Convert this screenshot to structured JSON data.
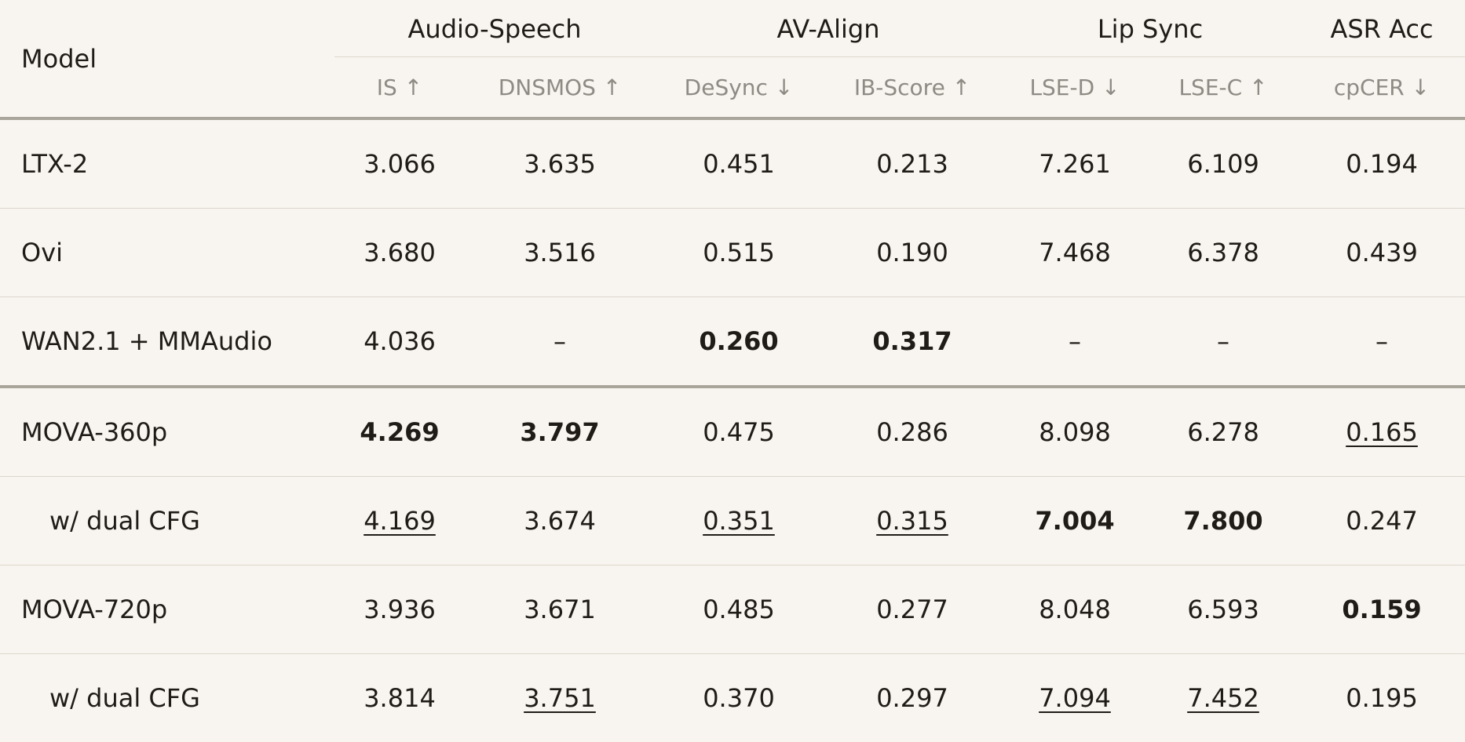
{
  "header": {
    "model_label": "Model",
    "groups": [
      {
        "label": "Audio-Speech",
        "metrics": [
          {
            "name": "IS",
            "arrow": "↑"
          },
          {
            "name": "DNSMOS",
            "arrow": "↑"
          }
        ]
      },
      {
        "label": "AV-Align",
        "metrics": [
          {
            "name": "DeSync",
            "arrow": "↓"
          },
          {
            "name": "IB-Score",
            "arrow": "↑"
          }
        ]
      },
      {
        "label": "Lip Sync",
        "metrics": [
          {
            "name": "LSE-D",
            "arrow": "↓"
          },
          {
            "name": "LSE-C",
            "arrow": "↑"
          }
        ]
      },
      {
        "label": "ASR Acc",
        "metrics": [
          {
            "name": "cpCER",
            "arrow": "↓"
          }
        ]
      }
    ]
  },
  "rows": [
    {
      "model": "LTX-2",
      "is": "3.066",
      "dnsmos": "3.635",
      "desync": "0.451",
      "ib_score": "0.213",
      "lse_d": "7.261",
      "lse_c": "6.109",
      "cpcer": "0.194"
    },
    {
      "model": "Ovi",
      "is": "3.680",
      "dnsmos": "3.516",
      "desync": "0.515",
      "ib_score": "0.190",
      "lse_d": "7.468",
      "lse_c": "6.378",
      "cpcer": "0.439"
    },
    {
      "model": "WAN2.1 + MMAudio",
      "is": "4.036",
      "dnsmos": "–",
      "desync": "0.260",
      "ib_score": "0.317",
      "lse_d": "–",
      "lse_c": "–",
      "cpcer": "–"
    },
    {
      "model": "MOVA-360p",
      "is": "4.269",
      "dnsmos": "3.797",
      "desync": "0.475",
      "ib_score": "0.286",
      "lse_d": "8.098",
      "lse_c": "6.278",
      "cpcer": "0.165"
    },
    {
      "model": "w/ dual CFG",
      "is": "4.169",
      "dnsmos": "3.674",
      "desync": "0.351",
      "ib_score": "0.315",
      "lse_d": "7.004",
      "lse_c": "7.800",
      "cpcer": "0.247"
    },
    {
      "model": "MOVA-720p",
      "is": "3.936",
      "dnsmos": "3.671",
      "desync": "0.485",
      "ib_score": "0.277",
      "lse_d": "8.048",
      "lse_c": "6.593",
      "cpcer": "0.159"
    },
    {
      "model": "w/ dual CFG",
      "is": "3.814",
      "dnsmos": "3.751",
      "desync": "0.370",
      "ib_score": "0.297",
      "lse_d": "7.094",
      "lse_c": "7.452",
      "cpcer": "0.195"
    }
  ]
}
